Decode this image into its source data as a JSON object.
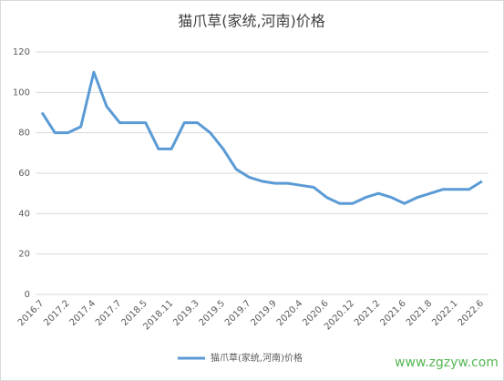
{
  "chart_data": {
    "type": "line",
    "title": "猫爪草(家统,河南)价格",
    "categories": [
      "2016.7",
      null,
      "2017.2",
      null,
      "2017.4",
      null,
      "2017.7",
      null,
      "2018.5",
      null,
      "2018.11",
      null,
      "2019.3",
      null,
      "2019.5",
      null,
      "2019.7",
      null,
      "2019.9",
      null,
      "2020.4",
      null,
      "2020.6",
      null,
      "2020.12",
      null,
      "2021.2",
      null,
      "2021.6",
      null,
      "2021.8",
      null,
      "2022.1",
      null,
      "2022.6"
    ],
    "series": [
      {
        "name": "猫爪草(家统,河南)价格",
        "color": "#5b9bd5",
        "values": [
          90,
          80,
          80,
          83,
          110,
          93,
          85,
          85,
          85,
          72,
          72,
          85,
          85,
          80,
          72,
          62,
          58,
          56,
          55,
          55,
          54,
          53,
          48,
          45,
          45,
          48,
          50,
          48,
          45,
          48,
          50,
          52,
          52,
          52,
          56
        ]
      }
    ],
    "ylim": [
      0,
      120
    ],
    "yticks": [
      0,
      20,
      40,
      60,
      80,
      100,
      120
    ],
    "grid": true,
    "legend": "bottom",
    "watermark": "www.zgzyw.com"
  }
}
